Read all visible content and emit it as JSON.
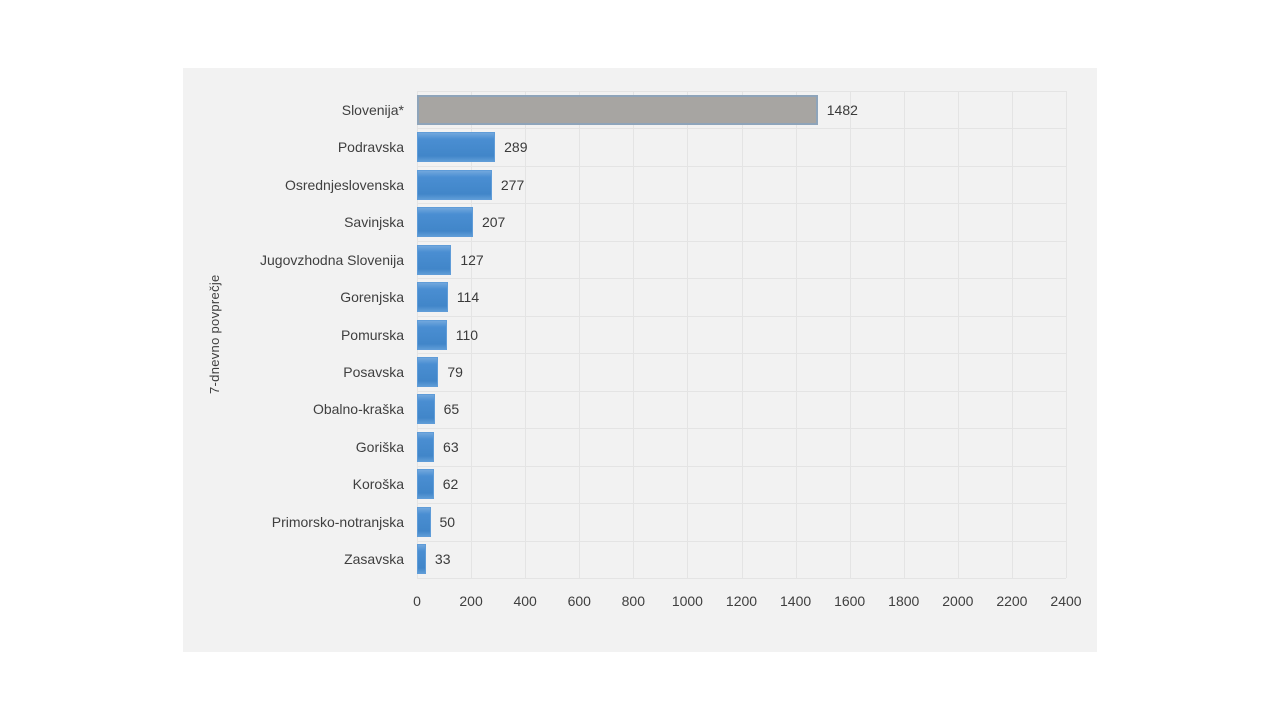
{
  "chart_data": {
    "type": "bar",
    "orientation": "horizontal",
    "title": "",
    "ylabel": "7-dnevno povprečje",
    "xlabel": "",
    "categories": [
      "Slovenija*",
      "Podravska",
      "Osrednjeslovenska",
      "Savinjska",
      "Jugovzhodna Slovenija",
      "Gorenjska",
      "Pomurska",
      "Posavska",
      "Obalno-kraška",
      "Goriška",
      "Koroška",
      "Primorsko-notranjska",
      "Zasavska"
    ],
    "values": [
      1482,
      289,
      277,
      207,
      127,
      114,
      110,
      79,
      65,
      63,
      62,
      50,
      33
    ],
    "value_labels": [
      "1482",
      "289",
      "277",
      "207",
      "127",
      "114",
      "110",
      "79",
      "65",
      "63",
      "62",
      "50",
      "33"
    ],
    "highlight_index": 0,
    "xlim": [
      0,
      2400
    ],
    "x_ticks": [
      0,
      200,
      400,
      600,
      800,
      1000,
      1200,
      1400,
      1600,
      1800,
      2000,
      2200,
      2400
    ],
    "grid": "both",
    "legend": "none",
    "colors": {
      "bar_default": "#4a8ed2",
      "bar_highlight_fill": "#a7a5a2",
      "bar_highlight_border": "#8ea4ba",
      "panel_background": "#f2f2f2",
      "page_background": "#ffffff",
      "gridline": "#e4e4e4",
      "text": "#3f3f3f"
    }
  }
}
